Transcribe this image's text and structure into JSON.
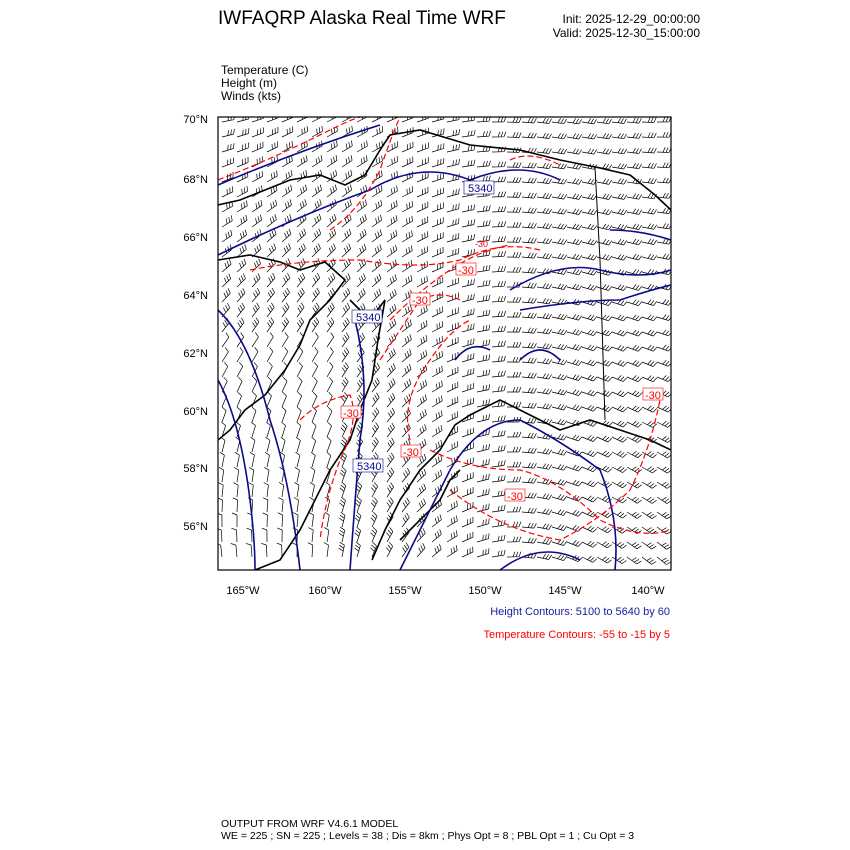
{
  "header": {
    "title": "IWFAQRP Alaska Real Time WRF",
    "init": "Init: 2025-12-29_00:00:00",
    "valid": "Valid: 2025-12-30_15:00:00"
  },
  "fields": [
    "Temperature   (C)",
    "Height   (m)",
    "Winds   (kts)"
  ],
  "map": {
    "lat_ticks": [
      "70°N",
      "68°N",
      "66°N",
      "64°N",
      "62°N",
      "60°N",
      "58°N",
      "56°N"
    ],
    "lon_ticks": [
      "165°W",
      "160°W",
      "155°W",
      "150°W",
      "145°W",
      "140°W"
    ],
    "height_labels": [
      "5340",
      "5340",
      "5340"
    ],
    "temperature_labels": [
      "-30",
      "-30",
      "-30",
      "-30",
      "-30",
      "-30",
      "-30"
    ],
    "colors": {
      "height": "#0a0a8c",
      "temperature": "#ff0000",
      "coast": "#000000",
      "barbs": "#000000"
    }
  },
  "legend": {
    "height_contours": "Height Contours: 5100 to 5640 by 60",
    "temperature_contours": "Temperature Contours: -55 to -15 by 5"
  },
  "footer": {
    "line1": "OUTPUT FROM WRF V4.6.1 MODEL",
    "line2": "WE = 225 ; SN = 225 ; Levels = 38 ; Dis = 8km ; Phys Opt = 8 ; PBL Opt = 1 ; Cu Opt = 3"
  }
}
